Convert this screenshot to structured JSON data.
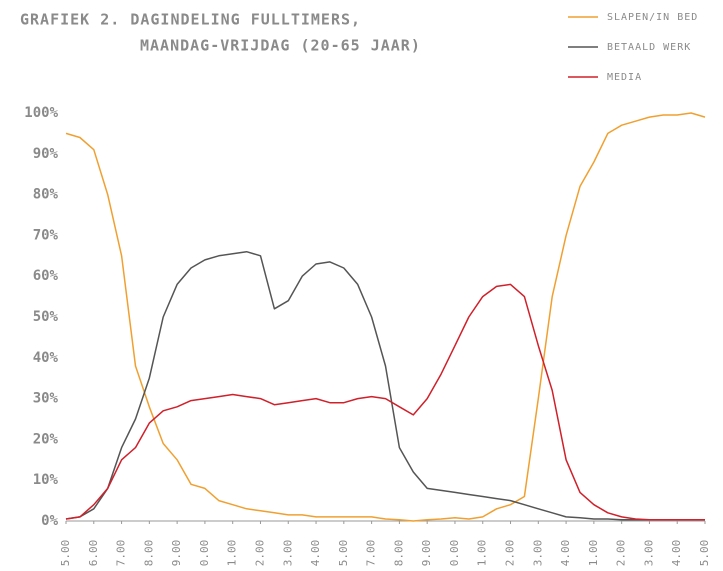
{
  "chart_data": {
    "type": "line",
    "title": [
      "GRAFIEK 2. DAGINDELING FULLTIMERS,",
      "MAANDAG-VRIJDAG (20-65 JAAR)"
    ],
    "x": [
      0,
      0.5,
      1,
      1.5,
      2,
      2.5,
      3,
      3.5,
      4,
      4.5,
      5,
      5.5,
      6,
      6.5,
      7,
      7.5,
      8,
      8.5,
      9,
      9.5,
      10,
      10.5,
      11,
      11.5,
      12,
      12.5,
      13,
      13.5,
      14,
      14.5,
      15,
      15.5,
      16,
      16.5,
      17,
      17.5,
      18,
      18.5,
      19,
      19.5,
      20,
      20.5,
      21,
      21.5,
      22,
      22.5,
      23
    ],
    "series": [
      {
        "name": "SLAPEN/IN BED",
        "color": "#f0a030",
        "values": [
          95,
          94,
          91,
          80,
          65,
          38,
          28,
          19,
          15,
          9,
          8,
          5,
          4,
          3,
          2.5,
          2,
          1.5,
          1.5,
          1,
          1,
          1,
          1,
          1,
          0.5,
          0.3,
          0,
          0.3,
          0.5,
          0.8,
          0.5,
          1,
          3,
          4,
          6,
          30,
          55,
          70,
          82,
          88,
          95,
          97,
          98,
          99,
          99.5,
          99.5,
          100,
          99
        ]
      },
      {
        "name": "BETAALD WERK",
        "color": "#555555",
        "values": [
          0.5,
          1,
          3,
          8,
          18,
          25,
          35,
          50,
          58,
          62,
          64,
          65,
          65.5,
          66,
          65,
          52,
          54,
          60,
          63,
          63.5,
          62,
          58,
          50,
          38,
          18,
          12,
          8,
          7.5,
          7,
          6.5,
          6,
          5.5,
          5,
          4,
          3,
          2,
          1,
          0.8,
          0.5,
          0.5,
          0.3,
          0.3,
          0.3,
          0.3,
          0.3,
          0.3,
          0.3
        ]
      },
      {
        "name": "MEDIA",
        "color": "#d0202a",
        "values": [
          0.5,
          1,
          4,
          8,
          15,
          18,
          24,
          27,
          28,
          29.5,
          30,
          30.5,
          31,
          30.5,
          30,
          28.5,
          29,
          29.5,
          30,
          29,
          29,
          30,
          30.5,
          30,
          28,
          26,
          30,
          36,
          43,
          50,
          55,
          57.5,
          58,
          55,
          43,
          32,
          15,
          7,
          4,
          2,
          1,
          0.5,
          0.3,
          0.3,
          0.3,
          0.3,
          0.3
        ]
      }
    ],
    "xlim": [
      0,
      23
    ],
    "xticks": [
      {
        "value": 0,
        "label": "5.00"
      },
      {
        "value": 1,
        "label": "6.00"
      },
      {
        "value": 2,
        "label": "7.00"
      },
      {
        "value": 3,
        "label": "8.00"
      },
      {
        "value": 4,
        "label": "9.00"
      },
      {
        "value": 5,
        "label": "0.00"
      },
      {
        "value": 6,
        "label": "1.00"
      },
      {
        "value": 7,
        "label": "2.00"
      },
      {
        "value": 8,
        "label": "3.00"
      },
      {
        "value": 9,
        "label": "4.00"
      },
      {
        "value": 10,
        "label": "5.00"
      },
      {
        "value": 11,
        "label": "7.00"
      },
      {
        "value": 12,
        "label": "8.00"
      },
      {
        "value": 13,
        "label": "9.00"
      },
      {
        "value": 14,
        "label": "0.00"
      },
      {
        "value": 15,
        "label": "1.00"
      },
      {
        "value": 16,
        "label": "2.00"
      },
      {
        "value": 17,
        "label": "3.00"
      },
      {
        "value": 18,
        "label": "4.00"
      },
      {
        "value": 19,
        "label": "1.00"
      },
      {
        "value": 20,
        "label": "2.00"
      },
      {
        "value": 21,
        "label": "3.00"
      },
      {
        "value": 22,
        "label": "4.00"
      },
      {
        "value": 23,
        "label": "5.00"
      }
    ],
    "ylim": [
      0,
      100
    ],
    "yticks": [
      {
        "value": 0,
        "label": "0%"
      },
      {
        "value": 10,
        "label": "10%"
      },
      {
        "value": 20,
        "label": "20%"
      },
      {
        "value": 30,
        "label": "30%"
      },
      {
        "value": 40,
        "label": "40%"
      },
      {
        "value": 50,
        "label": "50%"
      },
      {
        "value": 60,
        "label": "60%"
      },
      {
        "value": 70,
        "label": "70%"
      },
      {
        "value": 80,
        "label": "80%"
      },
      {
        "value": 90,
        "label": "90%"
      },
      {
        "value": 100,
        "label": "100%"
      }
    ],
    "legend": "top-right",
    "grid": false
  }
}
